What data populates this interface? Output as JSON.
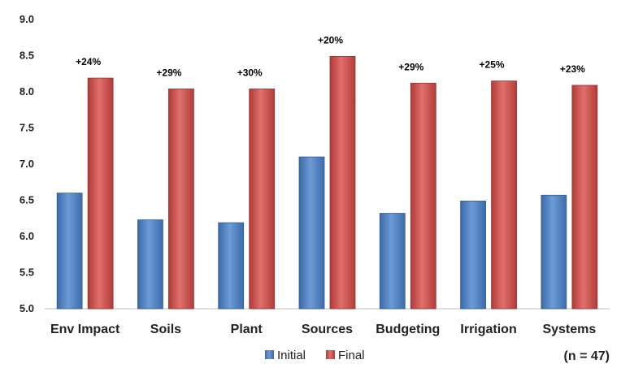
{
  "chart_data": {
    "type": "bar",
    "categories": [
      "Env Impact",
      "Soils",
      "Plant",
      "Sources",
      "Budgeting",
      "Irrigation",
      "Systems"
    ],
    "series": [
      {
        "name": "Initial",
        "color": "#4F81BD",
        "values": [
          6.6,
          6.23,
          6.19,
          7.1,
          6.32,
          6.49,
          6.57
        ]
      },
      {
        "name": "Final",
        "color": "#C0504D",
        "values": [
          8.19,
          8.04,
          8.04,
          8.49,
          8.12,
          8.15,
          8.09
        ]
      }
    ],
    "annotations": [
      "+24%",
      "+29%",
      "+30%",
      "+20%",
      "+29%",
      "+25%",
      "+23%"
    ],
    "ylim": [
      5.0,
      9.0
    ],
    "yticks": [
      "5.0",
      "5.5",
      "6.0",
      "6.5",
      "7.0",
      "7.5",
      "8.0",
      "8.5",
      "9.0"
    ],
    "grid": false,
    "legend": "bottom-center",
    "note": "(n = 47)",
    "title": "",
    "xlabel": "",
    "ylabel": ""
  }
}
